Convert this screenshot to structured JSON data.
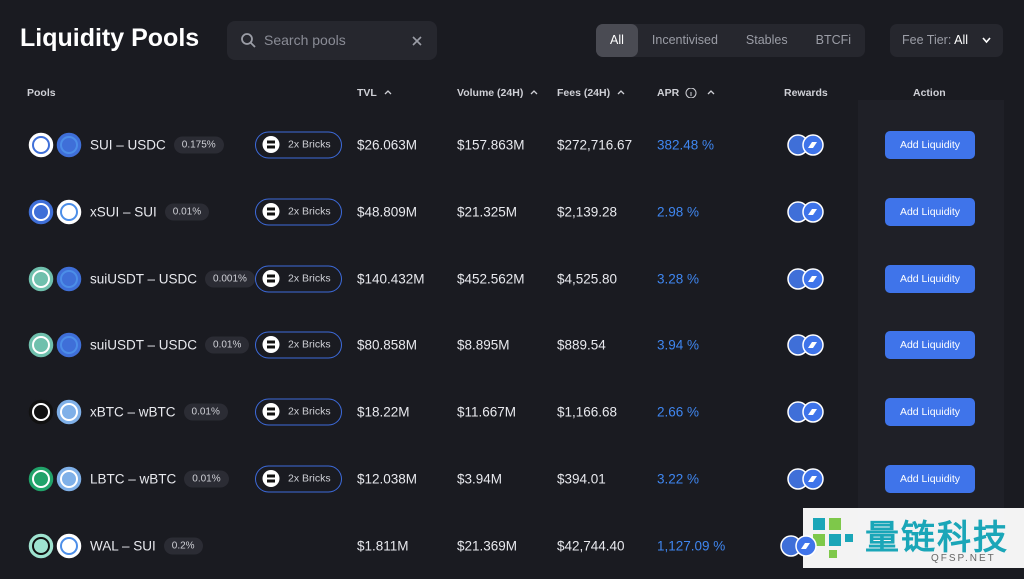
{
  "header": {
    "title": "Liquidity Pools",
    "search_placeholder": "Search pools",
    "tabs": [
      "All",
      "Incentivised",
      "Stables",
      "BTCFi"
    ],
    "fee_tier_label": "Fee Tier:",
    "fee_tier_value": "All"
  },
  "table": {
    "columns": [
      "Pools",
      "TVL",
      "Volume (24H)",
      "Fees (24H)",
      "APR",
      "Rewards",
      "Action"
    ],
    "rows": [
      {
        "pool": "SUI – USDC",
        "fee": "0.175%",
        "badge": "2x Bricks",
        "tvl": "$26.063M",
        "volume": "$157.863M",
        "fees": "$272,716.67",
        "apr": "382.48 %",
        "action": "Add Liquidity"
      },
      {
        "pool": "xSUI – SUI",
        "fee": "0.01%",
        "badge": "2x Bricks",
        "tvl": "$48.809M",
        "volume": "$21.325M",
        "fees": "$2,139.28",
        "apr": "2.98 %",
        "action": "Add Liquidity"
      },
      {
        "pool": "suiUSDT – USDC",
        "fee": "0.001%",
        "badge": "2x Bricks",
        "tvl": "$140.432M",
        "volume": "$452.562M",
        "fees": "$4,525.80",
        "apr": "3.28 %",
        "action": "Add Liquidity"
      },
      {
        "pool": "suiUSDT – USDC",
        "fee": "0.01%",
        "badge": "2x Bricks",
        "tvl": "$80.858M",
        "volume": "$8.895M",
        "fees": "$889.54",
        "apr": "3.94 %",
        "action": "Add Liquidity"
      },
      {
        "pool": "xBTC – wBTC",
        "fee": "0.01%",
        "badge": "2x Bricks",
        "tvl": "$18.22M",
        "volume": "$11.667M",
        "fees": "$1,166.68",
        "apr": "2.66 %",
        "action": "Add Liquidity"
      },
      {
        "pool": "LBTC – wBTC",
        "fee": "0.01%",
        "badge": "2x Bricks",
        "tvl": "$12.038M",
        "volume": "$3.94M",
        "fees": "$394.01",
        "apr": "3.22 %",
        "action": "Add Liquidity"
      },
      {
        "pool": "WAL – SUI",
        "fee": "0.2%",
        "tvl": "$1.811M",
        "volume": "$21.369M",
        "fees": "$42,744.40",
        "apr": "1,127.09 %"
      }
    ]
  },
  "watermark": {
    "name": "量链科技",
    "domain": "QFSP.NET"
  }
}
